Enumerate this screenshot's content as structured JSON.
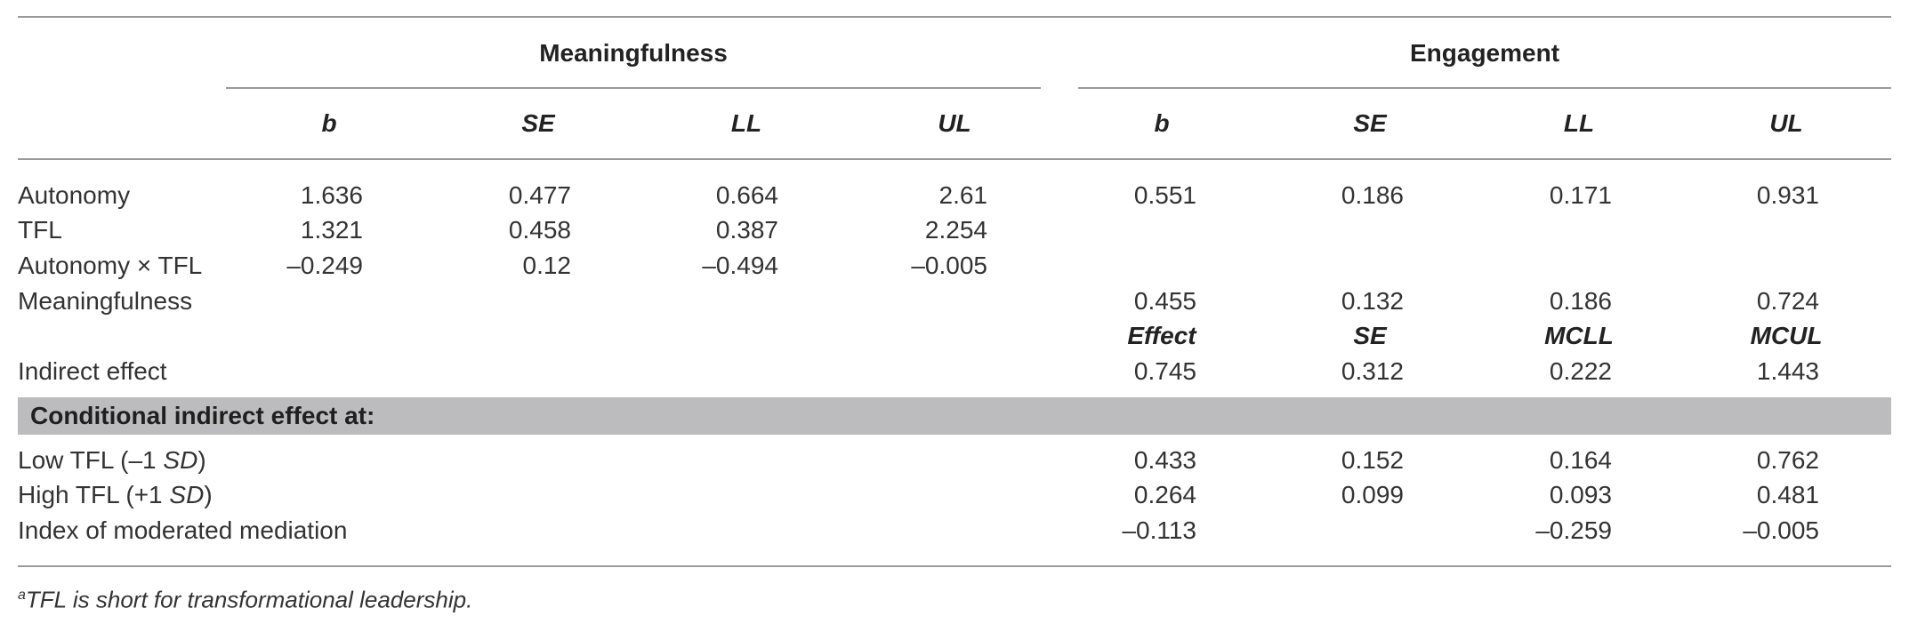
{
  "header": {
    "groups": [
      "Meaningfulness",
      "Engagement"
    ],
    "columns": [
      "b",
      "SE",
      "LL",
      "UL",
      "b",
      "SE",
      "LL",
      "UL"
    ]
  },
  "rows": [
    {
      "label": "Autonomy",
      "m": [
        "1.636",
        "0.477",
        "0.664",
        "2.61"
      ],
      "e": [
        "0.551",
        "0.186",
        "0.171",
        "0.931"
      ]
    },
    {
      "label": "TFL",
      "m": [
        "1.321",
        "0.458",
        "0.387",
        "2.254"
      ],
      "e": [
        "",
        "",
        "",
        ""
      ]
    },
    {
      "label": "Autonomy × TFL",
      "m": [
        "–0.249",
        "0.12",
        "–0.494",
        "–0.005"
      ],
      "e": [
        "",
        "",
        "",
        ""
      ]
    },
    {
      "label": "Meaningfulness",
      "m": [
        "",
        "",
        "",
        ""
      ],
      "e": [
        "0.455",
        "0.132",
        "0.186",
        "0.724"
      ]
    }
  ],
  "subheader": [
    "Effect",
    "SE",
    "MCLL",
    "MCUL"
  ],
  "indirect": {
    "label": "Indirect effect",
    "e": [
      "0.745",
      "0.312",
      "0.222",
      "1.443"
    ]
  },
  "conditional": {
    "title": "Conditional indirect effect at:",
    "rows": [
      {
        "label_pre": "Low TFL (–1 ",
        "label_sd": "SD",
        "label_post": ")",
        "e": [
          "0.433",
          "0.152",
          "0.164",
          "0.762"
        ]
      },
      {
        "label_pre": "High TFL (+1 ",
        "label_sd": "SD",
        "label_post": ")",
        "e": [
          "0.264",
          "0.099",
          "0.093",
          "0.481"
        ]
      },
      {
        "label_pre": "Index of moderated mediation",
        "label_sd": "",
        "label_post": "",
        "e": [
          "–0.113",
          "",
          "–0.259",
          "–0.005"
        ]
      }
    ]
  },
  "footnote": {
    "marker": "a",
    "text": "TFL is short for transformational leadership."
  }
}
